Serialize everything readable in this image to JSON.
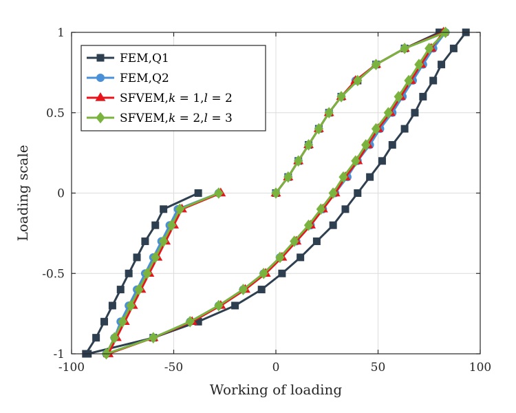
{
  "chart_data": {
    "type": "line",
    "xlabel": "Working of loading",
    "ylabel": "Loading scale",
    "xlim": [
      -100,
      100
    ],
    "ylim": [
      -1,
      1
    ],
    "xticks": [
      -100,
      -50,
      0,
      50,
      100
    ],
    "yticks": [
      -1,
      -0.5,
      0,
      0.5,
      1
    ],
    "xtick_labels": [
      "-100",
      "-50",
      "0",
      "50",
      "100"
    ],
    "ytick_labels": [
      "-1",
      "-0.5",
      "0",
      "0.5",
      "1"
    ],
    "grid": true,
    "legend_position": "top-left",
    "series": [
      {
        "name": "FEM,Q1",
        "legend_parts": [
          {
            "text": "FEM,Q1"
          }
        ],
        "color": "#2e3f50",
        "marker": "square",
        "segments": [
          [
            [
              -93,
              -1
            ],
            [
              -88,
              -0.9
            ],
            [
              -84,
              -0.8
            ],
            [
              -80,
              -0.7
            ],
            [
              -76,
              -0.6
            ],
            [
              -72,
              -0.5
            ],
            [
              -68,
              -0.4
            ],
            [
              -64,
              -0.3
            ],
            [
              -59,
              -0.2
            ],
            [
              -55,
              -0.1
            ],
            [
              -38,
              0
            ]
          ],
          [
            [
              -92,
              -1
            ],
            [
              -60,
              -0.9
            ],
            [
              -38,
              -0.8
            ],
            [
              -20,
              -0.7
            ],
            [
              -7,
              -0.6
            ],
            [
              3,
              -0.5
            ],
            [
              12,
              -0.4
            ],
            [
              20,
              -0.3
            ],
            [
              28,
              -0.2
            ],
            [
              34,
              -0.1
            ],
            [
              40,
              0
            ],
            [
              46,
              0.1
            ],
            [
              52,
              0.2
            ],
            [
              57,
              0.3
            ],
            [
              63,
              0.4
            ],
            [
              68,
              0.5
            ],
            [
              72,
              0.6
            ],
            [
              77,
              0.7
            ],
            [
              81,
              0.8
            ],
            [
              87,
              0.9
            ],
            [
              93,
              1
            ]
          ],
          [
            [
              0,
              0
            ],
            [
              6,
              0.1
            ],
            [
              11,
              0.2
            ],
            [
              16,
              0.3
            ],
            [
              21,
              0.4
            ],
            [
              26,
              0.5
            ],
            [
              32,
              0.6
            ],
            [
              40,
              0.7
            ],
            [
              49,
              0.8
            ],
            [
              63,
              0.9
            ],
            [
              80,
              1
            ]
          ]
        ]
      },
      {
        "name": "FEM,Q2",
        "legend_parts": [
          {
            "text": "FEM,Q2"
          }
        ],
        "color": "#4a90d9",
        "marker": "circle",
        "segments": [
          [
            [
              -83,
              -1
            ],
            [
              -79,
              -0.9
            ],
            [
              -76,
              -0.8
            ],
            [
              -72,
              -0.7
            ],
            [
              -68,
              -0.6
            ],
            [
              -64,
              -0.5
            ],
            [
              -60,
              -0.4
            ],
            [
              -56,
              -0.3
            ],
            [
              -52,
              -0.2
            ],
            [
              -48,
              -0.1
            ],
            [
              -28,
              0
            ]
          ],
          [
            [
              -83,
              -1
            ],
            [
              -60,
              -0.9
            ],
            [
              -42,
              -0.8
            ],
            [
              -28,
              -0.7
            ],
            [
              -16,
              -0.6
            ],
            [
              -6,
              -0.5
            ],
            [
              2,
              -0.4
            ],
            [
              10,
              -0.3
            ],
            [
              17,
              -0.2
            ],
            [
              23,
              -0.1
            ],
            [
              29,
              0
            ],
            [
              35,
              0.1
            ],
            [
              40,
              0.2
            ],
            [
              46,
              0.3
            ],
            [
              51,
              0.4
            ],
            [
              57,
              0.5
            ],
            [
              62,
              0.6
            ],
            [
              67,
              0.7
            ],
            [
              72,
              0.8
            ],
            [
              77,
              0.9
            ],
            [
              83,
              1
            ]
          ],
          [
            [
              0,
              0
            ],
            [
              6,
              0.1
            ],
            [
              11,
              0.2
            ],
            [
              16,
              0.3
            ],
            [
              21,
              0.4
            ],
            [
              26,
              0.5
            ],
            [
              32,
              0.6
            ],
            [
              39,
              0.7
            ],
            [
              49,
              0.8
            ],
            [
              63,
              0.9
            ],
            [
              83,
              1
            ]
          ]
        ]
      },
      {
        "name": "SFVEM,k = 1,l = 2",
        "legend_parts": [
          {
            "text": "SFVEM,"
          },
          {
            "text": "k",
            "italic": true
          },
          {
            "text": " = 1,"
          },
          {
            "text": "l",
            "italic": true
          },
          {
            "text": " = 2"
          }
        ],
        "color": "#e8141c",
        "marker": "triangle",
        "segments": [
          [
            [
              -82,
              -1
            ],
            [
              -78,
              -0.9
            ],
            [
              -74,
              -0.8
            ],
            [
              -70,
              -0.7
            ],
            [
              -66,
              -0.6
            ],
            [
              -62,
              -0.5
            ],
            [
              -58,
              -0.4
            ],
            [
              -54,
              -0.3
            ],
            [
              -50,
              -0.2
            ],
            [
              -46,
              -0.1
            ],
            [
              -27,
              0
            ]
          ],
          [
            [
              -82,
              -1
            ],
            [
              -60,
              -0.9
            ],
            [
              -41,
              -0.8
            ],
            [
              -27,
              -0.7
            ],
            [
              -15,
              -0.6
            ],
            [
              -5,
              -0.5
            ],
            [
              3,
              -0.4
            ],
            [
              10,
              -0.3
            ],
            [
              17,
              -0.2
            ],
            [
              23,
              -0.1
            ],
            [
              29,
              0
            ],
            [
              34,
              0.1
            ],
            [
              40,
              0.2
            ],
            [
              45,
              0.3
            ],
            [
              50,
              0.4
            ],
            [
              56,
              0.5
            ],
            [
              61,
              0.6
            ],
            [
              66,
              0.7
            ],
            [
              71,
              0.8
            ],
            [
              76,
              0.9
            ],
            [
              82,
              1
            ]
          ],
          [
            [
              0,
              0
            ],
            [
              6,
              0.1
            ],
            [
              11,
              0.2
            ],
            [
              16,
              0.3
            ],
            [
              21,
              0.4
            ],
            [
              26,
              0.5
            ],
            [
              32,
              0.6
            ],
            [
              39,
              0.7
            ],
            [
              49,
              0.8
            ],
            [
              63,
              0.9
            ],
            [
              82,
              1
            ]
          ]
        ]
      },
      {
        "name": "SFVEM,k = 2,l = 3",
        "legend_parts": [
          {
            "text": "SFVEM,"
          },
          {
            "text": "k",
            "italic": true
          },
          {
            "text": " = 2,"
          },
          {
            "text": "l",
            "italic": true
          },
          {
            "text": " = 3"
          }
        ],
        "color": "#7ab33e",
        "marker": "diamond",
        "segments": [
          [
            [
              -83,
              -1
            ],
            [
              -79,
              -0.9
            ],
            [
              -75,
              -0.8
            ],
            [
              -71,
              -0.7
            ],
            [
              -67,
              -0.6
            ],
            [
              -63,
              -0.5
            ],
            [
              -59,
              -0.4
            ],
            [
              -55,
              -0.3
            ],
            [
              -51,
              -0.2
            ],
            [
              -47,
              -0.1
            ],
            [
              -28,
              0
            ]
          ],
          [
            [
              -83,
              -1
            ],
            [
              -60,
              -0.9
            ],
            [
              -42,
              -0.8
            ],
            [
              -28,
              -0.7
            ],
            [
              -16,
              -0.6
            ],
            [
              -6,
              -0.5
            ],
            [
              2,
              -0.4
            ],
            [
              9,
              -0.3
            ],
            [
              16,
              -0.2
            ],
            [
              22,
              -0.1
            ],
            [
              28,
              0
            ],
            [
              33,
              0.1
            ],
            [
              39,
              0.2
            ],
            [
              44,
              0.3
            ],
            [
              49,
              0.4
            ],
            [
              55,
              0.5
            ],
            [
              60,
              0.6
            ],
            [
              65,
              0.7
            ],
            [
              70,
              0.8
            ],
            [
              75,
              0.9
            ],
            [
              83,
              1
            ]
          ],
          [
            [
              0,
              0
            ],
            [
              6,
              0.1
            ],
            [
              11,
              0.2
            ],
            [
              16,
              0.3
            ],
            [
              21,
              0.4
            ],
            [
              26,
              0.5
            ],
            [
              32,
              0.6
            ],
            [
              40,
              0.7
            ],
            [
              49,
              0.8
            ],
            [
              63,
              0.9
            ],
            [
              83,
              1
            ]
          ]
        ]
      }
    ]
  }
}
